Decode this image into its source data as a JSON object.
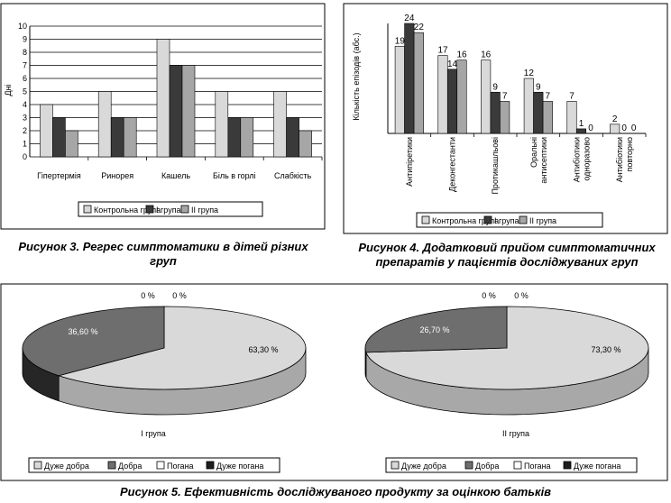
{
  "charts": [
    {
      "type": "bar",
      "caption_line1": "Рисунок 3. Регрес симптоматики в дітей різних",
      "caption_line2": "груп",
      "ylabel": "Дні",
      "ylim": [
        0,
        10
      ],
      "yticks": [
        0,
        1,
        2,
        3,
        4,
        5,
        6,
        7,
        8,
        9,
        10
      ],
      "categories": [
        "Гіпертермія",
        "Ринорея",
        "Кашель",
        "Біль в горлі",
        "Слабкість"
      ],
      "series": [
        {
          "name": "Контрольна група",
          "color": "#d9d9d9",
          "values": [
            4,
            5,
            9,
            5,
            5
          ]
        },
        {
          "name": "I група",
          "color": "#3a3a3a",
          "values": [
            3,
            3,
            7,
            3,
            3
          ]
        },
        {
          "name": "II група",
          "color": "#a6a6a6",
          "values": [
            2,
            3,
            7,
            3,
            2
          ]
        }
      ],
      "legend": "bottom"
    },
    {
      "type": "bar",
      "caption_line1": "Рисунок 4. Додатковий прийом симптоматичних",
      "caption_line2": "препаратів у пацієнтів досліджуваних груп",
      "ylabel": "Кількість епізодів (абс.)",
      "ylim": [
        0,
        24
      ],
      "categories": [
        [
          "Антипіретики"
        ],
        [
          "Деконгестанти"
        ],
        [
          "Протикашльові"
        ],
        [
          "Оральні",
          "антисептики"
        ],
        [
          "Антибіотики",
          "одноразово"
        ],
        [
          "Антибіотики",
          "повторно"
        ]
      ],
      "series": [
        {
          "name": "Контрольна група",
          "color": "#d9d9d9",
          "values": [
            19,
            17,
            16,
            12,
            7,
            2
          ]
        },
        {
          "name": "I група",
          "color": "#3a3a3a",
          "values": [
            24,
            14,
            9,
            9,
            1,
            0
          ]
        },
        {
          "name": "II група",
          "color": "#a6a6a6",
          "values": [
            22,
            16,
            7,
            7,
            0,
            0
          ]
        }
      ],
      "legend": "bottom"
    },
    {
      "type": "pie",
      "caption": "Рисунок 5. Ефективність досліджуваного продукту за оцінкою батьків",
      "legend": [
        {
          "name": "Дуже добра",
          "color": "#d9d9d9"
        },
        {
          "name": "Добра",
          "color": "#6e6e6e"
        },
        {
          "name": "Погана",
          "color": "#ffffff"
        },
        {
          "name": "Дуже погана",
          "color": "#1e1e1e"
        }
      ],
      "pies": [
        {
          "name": "I група",
          "labels": [
            "63,30 %",
            "36,60 %",
            "0 %",
            "0 %"
          ],
          "values": [
            63.3,
            36.6,
            0,
            0
          ]
        },
        {
          "name": "II група",
          "labels": [
            "73,30 %",
            "26,70 %",
            "0 %",
            "0 %"
          ],
          "values": [
            73.3,
            26.7,
            0,
            0
          ]
        }
      ]
    }
  ]
}
